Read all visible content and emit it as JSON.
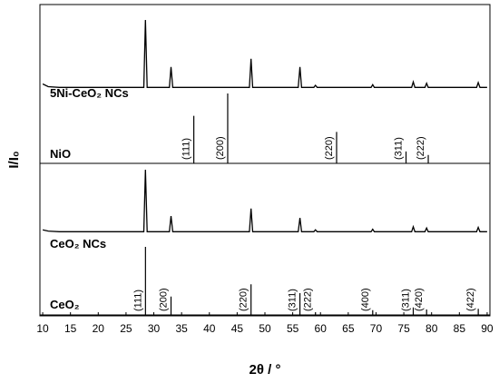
{
  "chart_data": {
    "type": "line",
    "x_label": "2θ / °",
    "y_label": "I/I₀",
    "xlim": [
      9.5,
      90.5
    ],
    "xticks": [
      10,
      15,
      20,
      25,
      30,
      35,
      40,
      45,
      50,
      55,
      60,
      65,
      70,
      75,
      80,
      85,
      90
    ],
    "series": [
      {
        "name": "5Ni-CeO₂ NCs",
        "type": "line",
        "color": "#000000",
        "x": [
          10,
          11,
          13,
          28.2,
          28.5,
          28.8,
          32.8,
          33.1,
          33.4,
          47.2,
          47.5,
          47.8,
          56.0,
          56.3,
          56.6,
          58.8,
          59.1,
          59.4,
          69.1,
          69.4,
          69.7,
          76.4,
          76.7,
          77.0,
          78.8,
          79.1,
          79.4,
          88.1,
          88.4,
          88.7,
          90
        ],
        "values": [
          6,
          2,
          1,
          1,
          100,
          1,
          1,
          31,
          1,
          1,
          43,
          1,
          1,
          31,
          1,
          1,
          4,
          1,
          1,
          5,
          1,
          1,
          9,
          1,
          1,
          7,
          1,
          1,
          8,
          1,
          1
        ]
      },
      {
        "name": "NiO",
        "type": "stick",
        "color": "#000000",
        "x": [
          37.2,
          43.3,
          62.9,
          75.4,
          79.4
        ],
        "values": [
          68,
          100,
          45,
          17,
          12
        ],
        "labels": [
          "(111)",
          "(200)",
          "(220)",
          "(311)",
          "(222)"
        ]
      },
      {
        "name": "CeO₂ NCs",
        "type": "line",
        "color": "#000000",
        "x": [
          10,
          11,
          13,
          28.2,
          28.5,
          28.8,
          32.8,
          33.1,
          33.4,
          47.2,
          47.5,
          47.8,
          56.0,
          56.3,
          56.6,
          58.8,
          59.1,
          59.4,
          69.1,
          69.4,
          69.7,
          76.4,
          76.7,
          77.0,
          78.8,
          79.1,
          79.4,
          88.1,
          88.4,
          88.7,
          90
        ],
        "values": [
          4,
          2,
          1,
          1,
          100,
          1,
          1,
          26,
          1,
          1,
          38,
          1,
          1,
          23,
          1,
          1,
          4,
          1,
          1,
          5,
          1,
          1,
          9,
          1,
          1,
          7,
          1,
          1,
          8,
          1,
          1
        ]
      },
      {
        "name": "CeO₂",
        "type": "stick",
        "color": "#000000",
        "x": [
          28.5,
          33.1,
          47.5,
          56.3,
          59.1,
          69.4,
          76.7,
          79.1,
          88.4
        ],
        "values": [
          100,
          27,
          45,
          32,
          4,
          7,
          11,
          8,
          9
        ],
        "labels": [
          "(111)",
          "(200)",
          "(220)",
          "(311)",
          "(222)",
          "(400)",
          "(311)",
          "(420)",
          "(422)"
        ]
      }
    ]
  }
}
